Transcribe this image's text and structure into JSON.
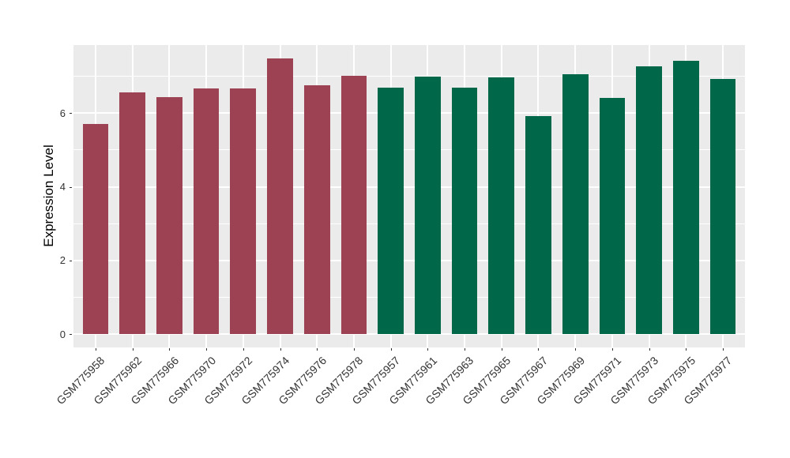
{
  "chart_data": {
    "type": "bar",
    "title": "",
    "xlabel": "",
    "ylabel": "Expression Level",
    "categories": [
      "GSM775958",
      "GSM775962",
      "GSM775966",
      "GSM775970",
      "GSM775972",
      "GSM775974",
      "GSM775976",
      "GSM775978",
      "GSM775957",
      "GSM775961",
      "GSM775963",
      "GSM775965",
      "GSM775967",
      "GSM775969",
      "GSM775971",
      "GSM775973",
      "GSM775975",
      "GSM775977"
    ],
    "values": [
      5.71,
      6.57,
      6.43,
      6.67,
      6.67,
      7.49,
      6.76,
      7.02,
      6.7,
      7.0,
      6.7,
      6.98,
      5.91,
      7.06,
      6.42,
      7.27,
      7.42,
      6.92
    ],
    "bar_groups": [
      "group1",
      "group1",
      "group1",
      "group1",
      "group1",
      "group1",
      "group1",
      "group1",
      "group2",
      "group2",
      "group2",
      "group2",
      "group2",
      "group2",
      "group2",
      "group2",
      "group2",
      "group2"
    ],
    "group_colors": {
      "group1": "#9D4252",
      "group2": "#006848"
    },
    "yticks": [
      0,
      2,
      4,
      6
    ],
    "yticks_minor": [
      1,
      3,
      5,
      7
    ],
    "ylim": [
      0,
      7.85
    ],
    "legend": "none",
    "grid": true,
    "panel_bg": "#EBEBEB",
    "grid_color": "#FFFFFF",
    "axis_text_color": "#333333"
  }
}
